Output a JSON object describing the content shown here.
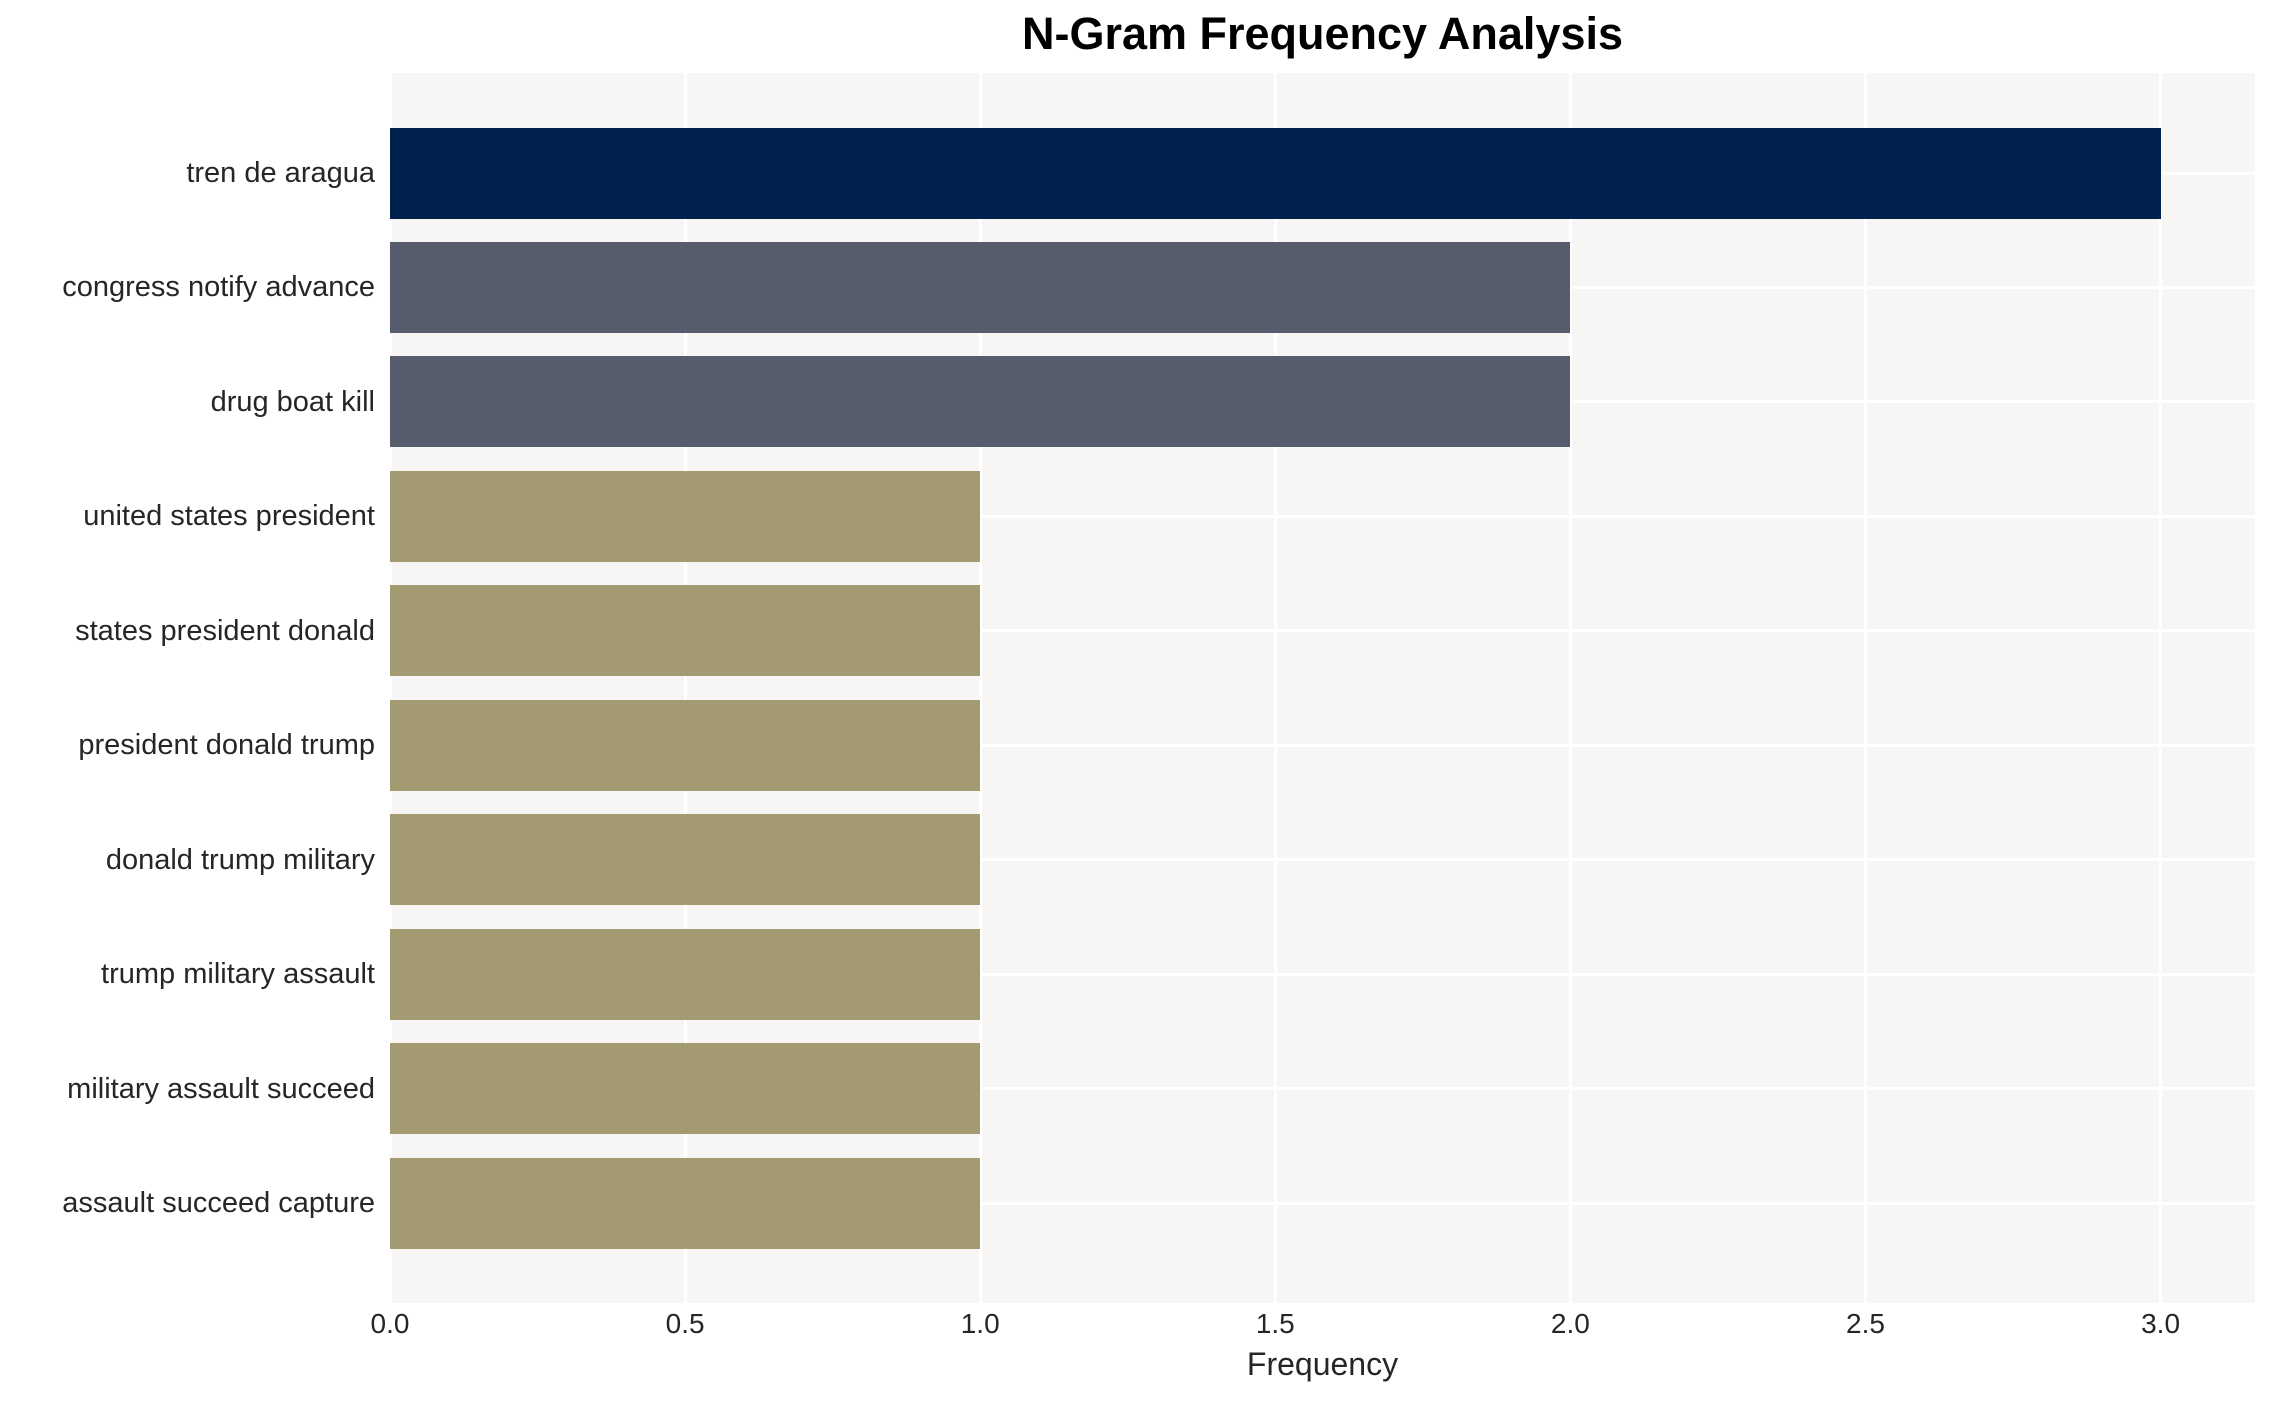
{
  "title": "N-Gram Frequency Analysis",
  "chart_data": {
    "type": "bar",
    "orientation": "horizontal",
    "title": "N-Gram Frequency Analysis",
    "xlabel": "Frequency",
    "ylabel": "",
    "categories": [
      "tren de aragua",
      "congress notify advance",
      "drug boat kill",
      "united states president",
      "states president donald",
      "president donald trump",
      "donald trump military",
      "trump military assault",
      "military assault succeed",
      "assault succeed capture"
    ],
    "values": [
      3,
      2,
      2,
      1,
      1,
      1,
      1,
      1,
      1,
      1
    ],
    "bar_colors": [
      "#02214d",
      "#565c6b",
      "#565c6b",
      "#a39a71",
      "#a39a71",
      "#a39a71",
      "#a39a71",
      "#a39a71",
      "#a39a71",
      "#a39a71"
    ],
    "xlim": [
      0,
      3.16
    ],
    "xticks": [
      "0.0",
      "0.5",
      "1.0",
      "1.5",
      "2.0",
      "2.5",
      "3.0"
    ],
    "xtick_values": [
      0,
      0.5,
      1.0,
      1.5,
      2.0,
      2.5,
      3.0
    ],
    "grid": true,
    "legend": false
  },
  "colors": {
    "figure_background": "#ffffff",
    "plot_background": "#f7f6f5",
    "gridline": "#ffffff",
    "title_text": "#000000",
    "label_text": "#262626"
  }
}
